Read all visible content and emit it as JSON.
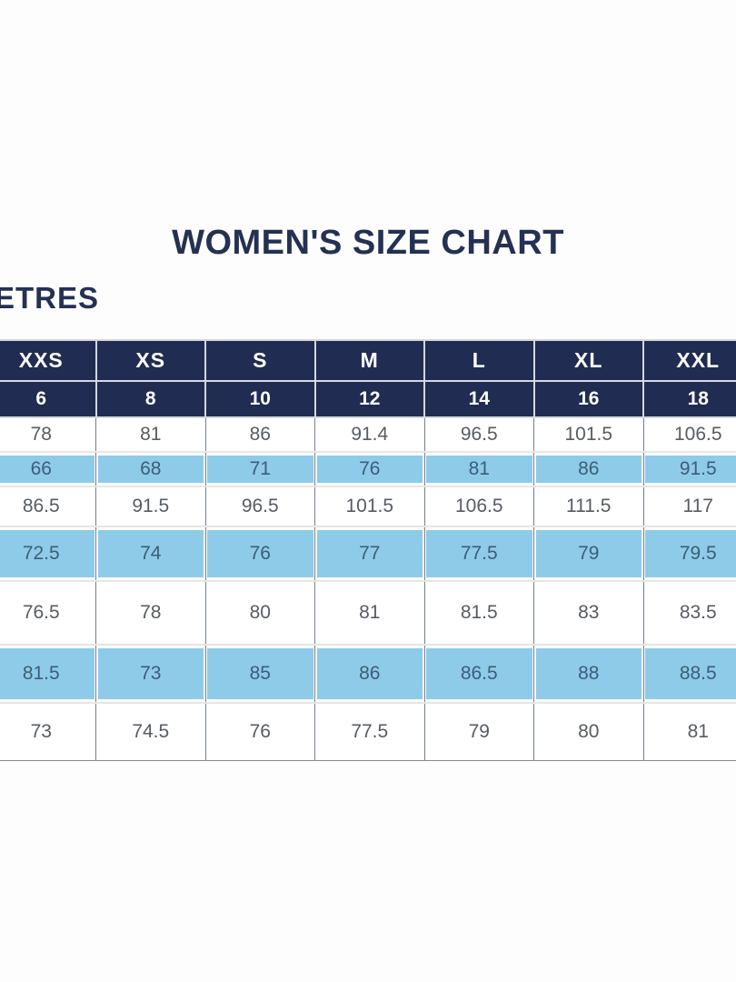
{
  "title": "WOMEN'S SIZE CHART",
  "units_label": "ETRES",
  "colors": {
    "header_navy": "#202c52",
    "highlight_blue": "#8ecbe9",
    "title_text": "#243152",
    "data_text": "#575c63",
    "highlight_text": "#3c5e76"
  },
  "chart_data": {
    "type": "table",
    "title": "WOMEN'S SIZE CHART",
    "size_headers": [
      "XXS",
      "XS",
      "S",
      "M",
      "L",
      "XL",
      "XXL"
    ],
    "numeric_headers": [
      "6",
      "8",
      "10",
      "12",
      "14",
      "16",
      "18"
    ],
    "rows": [
      {
        "values": [
          "78",
          "81",
          "86",
          "91.4",
          "96.5",
          "101.5",
          "106.5"
        ]
      },
      {
        "values": [
          "66",
          "68",
          "71",
          "76",
          "81",
          "86",
          "91.5"
        ]
      },
      {
        "values": [
          "86.5",
          "91.5",
          "96.5",
          "101.5",
          "106.5",
          "111.5",
          "117"
        ]
      },
      {
        "values": [
          "72.5",
          "74",
          "76",
          "77",
          "77.5",
          "79",
          "79.5"
        ]
      },
      {
        "values": [
          "76.5",
          "78",
          "80",
          "81",
          "81.5",
          "83",
          "83.5"
        ]
      },
      {
        "values": [
          "81.5",
          "73",
          "85",
          "86",
          "86.5",
          "88",
          "88.5"
        ]
      },
      {
        "values": [
          "73",
          "74.5",
          "76",
          "77.5",
          "79",
          "80",
          "81"
        ]
      }
    ],
    "highlighted_row_indices": [
      1,
      3,
      5
    ]
  }
}
